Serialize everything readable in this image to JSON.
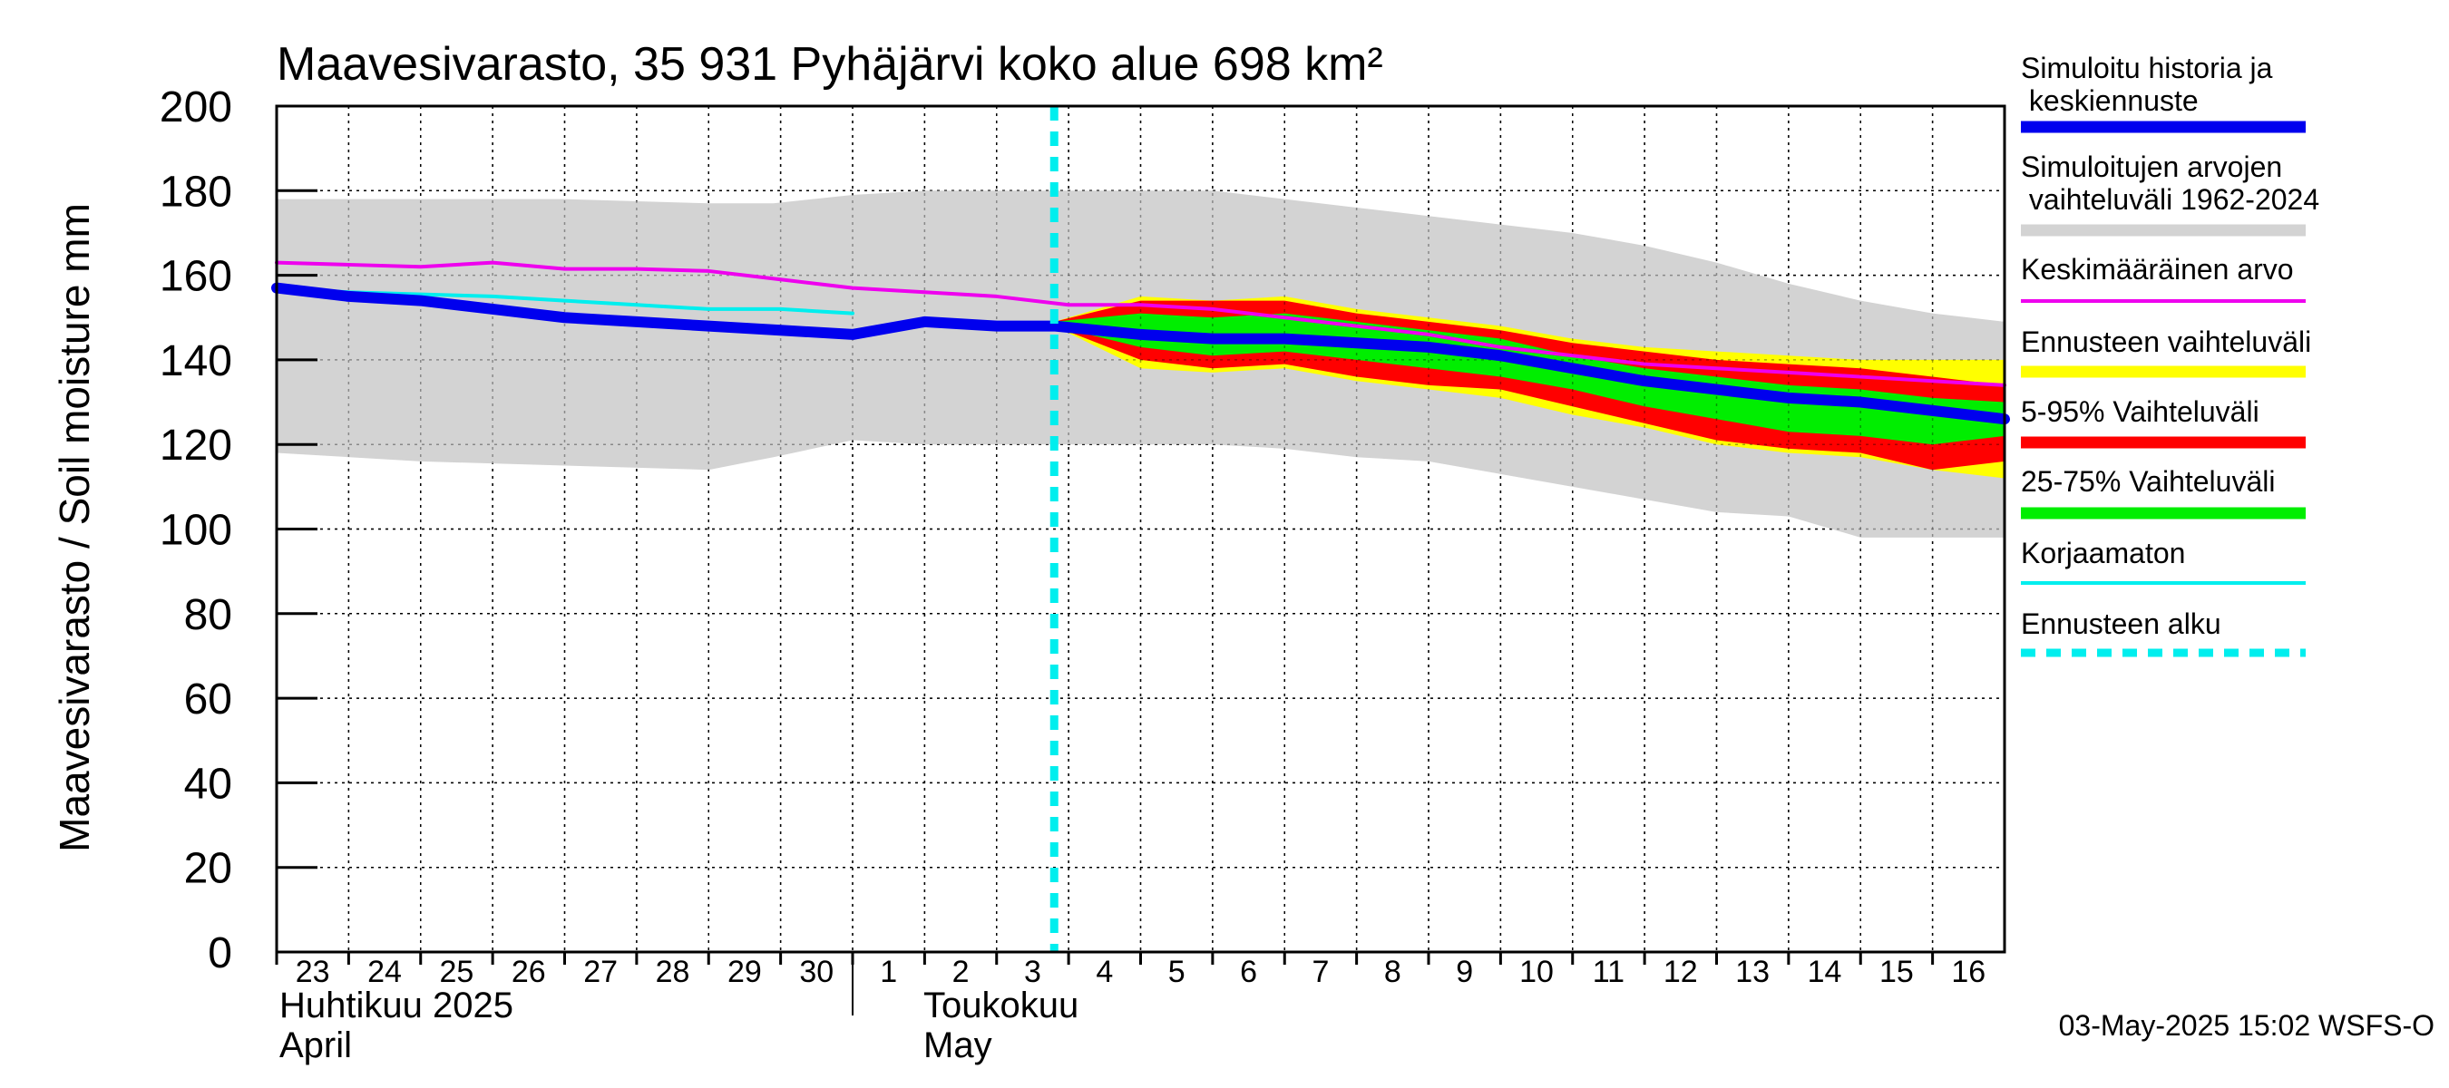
{
  "chart_data": {
    "type": "area",
    "title": "Maavesivarasto, 35 931 Pyhäjärvi koko alue 698 km²",
    "ylabel": "Maavesivarasto / Soil moisture   mm",
    "ylim": [
      0,
      200
    ],
    "yticks": [
      "0",
      "20",
      "40",
      "60",
      "80",
      "100",
      "120",
      "140",
      "160",
      "180",
      "200"
    ],
    "days": [
      "23",
      "24",
      "25",
      "26",
      "27",
      "28",
      "29",
      "30",
      "1",
      "2",
      "3",
      "4",
      "5",
      "6",
      "7",
      "8",
      "9",
      "10",
      "11",
      "12",
      "13",
      "14",
      "15",
      "16"
    ],
    "months": [
      {
        "line1": "Huhtikuu  2025",
        "line2": "April"
      },
      {
        "line1": "Toukokuu",
        "line2": "May"
      }
    ],
    "forecast_start_day_index": 10.8,
    "series": {
      "history_range": {
        "x": [
          0,
          2,
          4,
          6,
          6.9,
          8,
          9,
          10,
          11,
          12,
          13,
          14,
          15,
          16,
          17,
          18,
          19,
          20,
          21,
          22,
          23,
          24
        ],
        "upper": [
          178,
          178,
          178,
          177,
          177,
          179,
          180,
          180,
          180,
          180,
          180,
          178,
          176,
          174,
          172,
          170,
          167,
          163,
          158,
          154,
          151,
          149
        ],
        "lower": [
          118,
          116,
          115,
          114,
          117,
          121,
          120,
          120,
          120,
          120,
          120,
          119,
          117,
          116,
          113,
          110,
          107,
          104,
          103,
          98,
          98,
          98
        ]
      },
      "forecast_range": {
        "x": [
          10.8,
          12,
          13,
          14,
          15,
          16,
          17,
          18,
          19,
          20,
          21,
          22,
          23,
          24
        ],
        "upper": [
          149,
          155,
          154,
          155,
          152,
          150,
          148,
          145,
          143,
          142,
          141,
          140,
          140,
          140
        ],
        "lower": [
          148,
          138,
          137,
          138,
          135,
          133,
          131,
          127,
          124,
          120,
          118,
          117,
          114,
          112
        ]
      },
      "p5_95": {
        "x": [
          10.8,
          12,
          13,
          14,
          15,
          16,
          17,
          18,
          19,
          20,
          21,
          22,
          23,
          24
        ],
        "upper": [
          149,
          154,
          154,
          154,
          151,
          149,
          147,
          144,
          142,
          140,
          139,
          138,
          136,
          134
        ],
        "lower": [
          148,
          140,
          138,
          139,
          136,
          134,
          133,
          129,
          125,
          121,
          119,
          118,
          114,
          116
        ]
      },
      "p25_75": {
        "x": [
          10.8,
          12,
          13,
          14,
          15,
          16,
          17,
          18,
          19,
          20,
          21,
          22,
          23,
          24
        ],
        "upper": [
          149,
          151,
          150,
          151,
          149,
          147,
          145,
          141,
          138,
          136,
          134,
          133,
          131,
          130
        ],
        "lower": [
          148,
          143,
          141,
          142,
          140,
          138,
          136,
          133,
          129,
          126,
          123,
          122,
          120,
          122
        ]
      },
      "mean": {
        "name": "Keskimääräinen arvo",
        "x": [
          0,
          1,
          2,
          3,
          4,
          5,
          6,
          7,
          8,
          9,
          10,
          11,
          12,
          13,
          14,
          15,
          16,
          17,
          18,
          19,
          20,
          21,
          22,
          23,
          24
        ],
        "y": [
          163,
          162.5,
          162,
          163,
          161.5,
          161.5,
          161,
          159,
          157,
          156,
          155,
          153,
          153,
          152,
          150,
          148,
          146,
          143,
          141,
          139,
          138,
          137,
          136,
          135,
          134
        ]
      },
      "uncorrected": {
        "name": "Korjaamaton",
        "x": [
          0,
          1,
          2,
          3,
          4,
          5,
          6,
          7,
          8
        ],
        "y": [
          157,
          156,
          155.5,
          155,
          154,
          153,
          152,
          152,
          151
        ]
      },
      "simulated": {
        "name": "Simuloitu historia ja keskiennuste",
        "x": [
          0,
          1,
          2,
          3,
          4,
          5,
          6,
          7,
          8,
          9,
          10,
          10.8,
          12,
          13,
          14,
          15,
          16,
          17,
          18,
          19,
          20,
          21,
          22,
          23,
          24
        ],
        "y": [
          157,
          155,
          154,
          152,
          150,
          149,
          148,
          147,
          146,
          149,
          148,
          148,
          146,
          145,
          145,
          144,
          143,
          141,
          138,
          135,
          133,
          131,
          130,
          128,
          126
        ]
      }
    },
    "legend": [
      {
        "label": "Simuloitu historia ja keskiennuste",
        "color": "#0000ee",
        "style": "thick"
      },
      {
        "label": "Simuloitujen arvojen vaihteluväli 1962-2024",
        "color": "#d3d3d3",
        "style": "thick"
      },
      {
        "label": "Keskimääräinen arvo",
        "color": "#ee00ee",
        "style": "thin"
      },
      {
        "label": "Ennusteen vaihteluväli",
        "color": "#ffff00",
        "style": "thick"
      },
      {
        "label": "5-95% Vaihteluväli",
        "color": "#ff0000",
        "style": "thick"
      },
      {
        "label": "25-75% Vaihteluväli",
        "color": "#00ee00",
        "style": "thick"
      },
      {
        "label": "Korjaamaton",
        "color": "#00eeee",
        "style": "thin"
      },
      {
        "label": "Ennusteen alku",
        "color": "#00eeee",
        "style": "dashed"
      }
    ],
    "footer": "03-May-2025 15:02 WSFS-O"
  }
}
